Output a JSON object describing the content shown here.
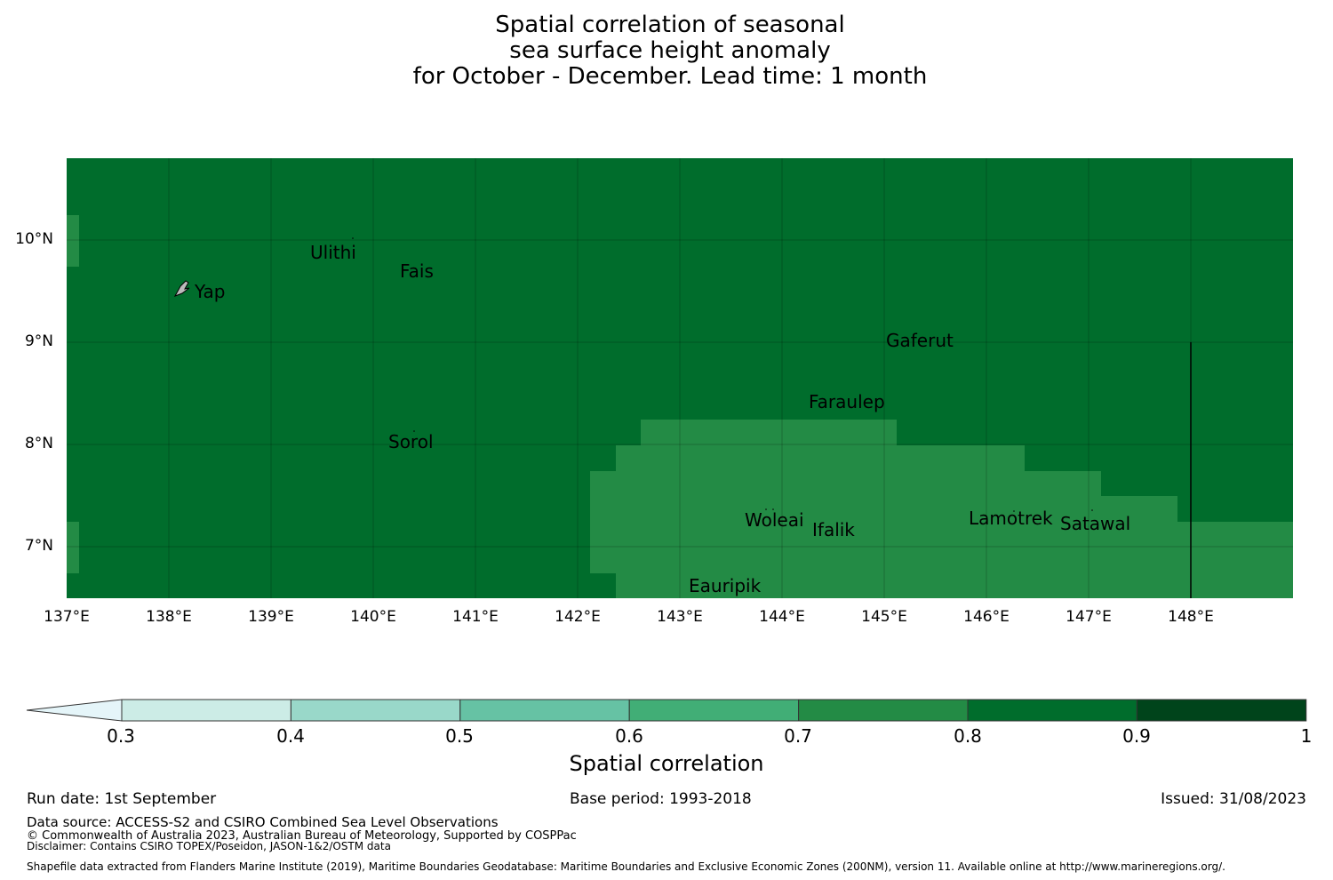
{
  "title": {
    "line1": "Spatial correlation of seasonal",
    "line2": "sea surface height anomaly",
    "line3": "for October - December. Lead time: 1 month"
  },
  "map": {
    "lat_labels": [
      "10°N",
      "9°N",
      "8°N",
      "7°N"
    ],
    "lon_labels": [
      "137°E",
      "138°E",
      "139°E",
      "140°E",
      "141°E",
      "142°E",
      "143°E",
      "144°E",
      "145°E",
      "146°E",
      "147°E",
      "148°E"
    ],
    "extent": {
      "lon_min": 137.0,
      "lon_max": 149.0,
      "lat_min": 6.5,
      "lat_max": 10.8
    },
    "background_color": "#006d2c",
    "patch_color": "#238b45",
    "places": [
      "Ulithi",
      "Fais",
      "Yap",
      "Gaferut",
      "Faraulep",
      "Sorol",
      "Woleai",
      "Ifalik",
      "Lamotrek",
      "Satawal",
      "Eauripik"
    ]
  },
  "colorbar": {
    "label": "Spatial correlation",
    "ticks": [
      "0.3",
      "0.4",
      "0.5",
      "0.6",
      "0.7",
      "0.8",
      "0.9",
      "1"
    ],
    "colors": [
      "#e5f5f9",
      "#ccece6",
      "#99d8c9",
      "#66c2a4",
      "#41ae76",
      "#238b45",
      "#006d2c",
      "#00441b"
    ]
  },
  "footer": {
    "run_date": "Run date: 1st September",
    "base_period": "Base period: 1993-2018",
    "issued": "Issued: 31/08/2023",
    "data_source": "Data source: ACCESS-S2 and CSIRO Combined Sea Level Observations",
    "copyright": "© Commonwealth of Australia 2023, Australian Bureau of Meteorology, Supported by COSPPac",
    "disclaimer": "Disclaimer: Contains CSIRO TOPEX/Poseidon, JASON-1&2/OSTM data",
    "shapefile": "Shapefile data extracted from Flanders Marine Institute (2019), Maritime Boundaries Geodatabase: Maritime Boundaries and Exclusive Economic Zones (200NM), version 11. Available online at http://www.marineregions.org/."
  }
}
